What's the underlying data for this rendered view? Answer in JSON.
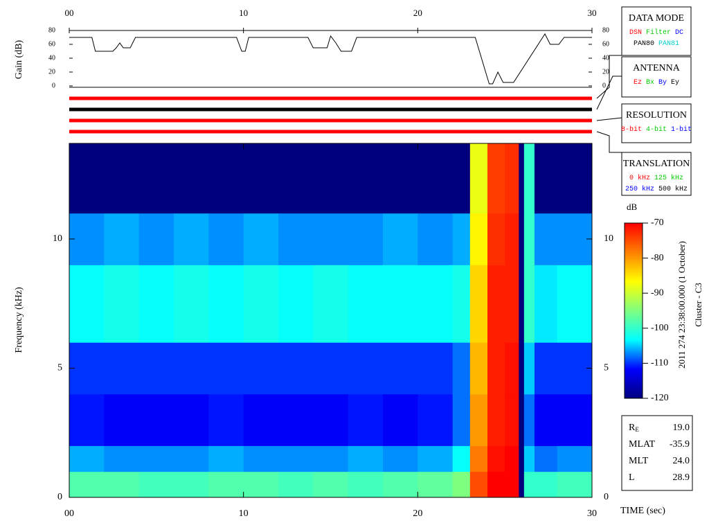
{
  "chart_data": [
    {
      "type": "line",
      "ylabel": "Gain (dB)",
      "xlim": [
        0,
        30
      ],
      "xticks": [
        {
          "value": 0,
          "label": "00"
        },
        10,
        20,
        30
      ],
      "ylim": [
        0,
        80
      ],
      "yticks": [
        0,
        20,
        40,
        60,
        80
      ],
      "color": "#000000",
      "x": [
        0,
        1.3,
        1.5,
        2.5,
        2.7,
        2.9,
        3.1,
        3.5,
        3.8,
        9.6,
        9.9,
        10.1,
        10.3,
        13.7,
        14,
        14.8,
        15,
        15.3,
        15.6,
        16.2,
        16.5,
        23.3,
        24.1,
        24.3,
        24.6,
        24.9,
        25.5,
        27.3,
        27.6,
        28.1,
        28.4,
        30
      ],
      "values": [
        70,
        70,
        50,
        50,
        55,
        62,
        55,
        55,
        70,
        70,
        50,
        50,
        70,
        70,
        55,
        55,
        72,
        62,
        50,
        50,
        70,
        70,
        3,
        3,
        20,
        5,
        5,
        75,
        60,
        60,
        70,
        70
      ]
    },
    {
      "type": "heatmap",
      "ylabel": "Frequency (kHz)",
      "xlabel": "TIME (sec)",
      "colorbar_title": "dB",
      "xlim": [
        0,
        30
      ],
      "xticks": [
        {
          "value": 0,
          "label": "00"
        },
        10,
        20,
        30
      ],
      "ylim": [
        0,
        13.7
      ],
      "yticks": [
        0,
        5,
        10
      ],
      "zlim": [
        -120,
        -70
      ],
      "zticks": [
        -120,
        -110,
        -100,
        -90,
        -80,
        -70
      ],
      "colormap": [
        "#00007f",
        "#0000ff",
        "#00ffff",
        "#7fff7f",
        "#ffff00",
        "#ff7f00",
        "#ff0000"
      ],
      "time_edges": [
        0,
        2,
        4,
        6,
        8,
        10,
        12,
        14,
        16,
        18,
        20,
        22,
        23,
        24,
        25,
        25.8,
        26.1,
        26.7,
        28,
        30
      ],
      "freq_edges": [
        0,
        1,
        2,
        4,
        6,
        9,
        11,
        13.7
      ],
      "z": [
        [
          -98,
          -106,
          -111,
          -110,
          -103,
          -107,
          -120
        ],
        [
          -98,
          -107,
          -112,
          -110,
          -102,
          -106,
          -120
        ],
        [
          -99,
          -107,
          -112,
          -110,
          -103,
          -107,
          -120
        ],
        [
          -99,
          -107,
          -112,
          -110,
          -102,
          -106,
          -120
        ],
        [
          -98,
          -106,
          -111,
          -110,
          -103,
          -107,
          -120
        ],
        [
          -98,
          -107,
          -112,
          -110,
          -102,
          -106,
          -120
        ],
        [
          -99,
          -107,
          -112,
          -110,
          -103,
          -107,
          -120
        ],
        [
          -98,
          -107,
          -112,
          -110,
          -102,
          -107,
          -120
        ],
        [
          -99,
          -106,
          -111,
          -110,
          -103,
          -107,
          -120
        ],
        [
          -98,
          -107,
          -112,
          -110,
          -103,
          -106,
          -120
        ],
        [
          -97,
          -106,
          -111,
          -110,
          -103,
          -107,
          -120
        ],
        [
          -95,
          -103,
          -108,
          -108,
          -102,
          -106,
          -120
        ],
        [
          -75,
          -78,
          -80,
          -82,
          -84,
          -86,
          -88
        ],
        [
          -70,
          -71,
          -72,
          -72,
          -72,
          -73,
          -74
        ],
        [
          -70,
          -70,
          -71,
          -71,
          -72,
          -72,
          -73
        ],
        [
          -120,
          -120,
          -120,
          -120,
          -120,
          -120,
          -120
        ],
        [
          -100,
          -105,
          -108,
          -105,
          -100,
          -100,
          -100
        ],
        [
          -100,
          -108,
          -112,
          -110,
          -104,
          -107,
          -120
        ],
        [
          -99,
          -107,
          -112,
          -110,
          -103,
          -107,
          -120
        ]
      ]
    }
  ],
  "status_bars": [
    "#ff0000",
    "#000000",
    "#ff0000",
    "#ff0000"
  ],
  "side_panels": [
    {
      "title": "DATA MODE",
      "rows": [
        [
          {
            "text": "DSN",
            "color": "#ff0000"
          },
          {
            "text": "Filter",
            "color": "#00cc00"
          },
          {
            "text": "DC",
            "color": "#0000ff"
          }
        ],
        [
          {
            "text": "PAN80",
            "color": "#000000"
          },
          {
            "text": "PAN81",
            "color": "#00cccc"
          }
        ]
      ]
    },
    {
      "title": "ANTENNA",
      "rows": [
        [
          {
            "text": "Ez",
            "color": "#ff0000"
          },
          {
            "text": "Bx",
            "color": "#00cc00"
          },
          {
            "text": "By",
            "color": "#0000ff"
          },
          {
            "text": "Ey",
            "color": "#000000"
          }
        ]
      ]
    },
    {
      "title": "RESOLUTION",
      "rows": [
        [
          {
            "text": "8-bit",
            "color": "#ff0000"
          },
          {
            "text": "4-bit",
            "color": "#00cc00"
          },
          {
            "text": "1-bit",
            "color": "#0000ff"
          }
        ]
      ]
    },
    {
      "title": "TRANSLATION",
      "rows": [
        [
          {
            "text": "0 kHz",
            "color": "#ff0000"
          },
          {
            "text": "125 kHz",
            "color": "#00cc00"
          }
        ],
        [
          {
            "text": "250 kHz",
            "color": "#0000ff"
          },
          {
            "text": "500 kHz",
            "color": "#000000"
          }
        ]
      ]
    }
  ],
  "stats": [
    {
      "label": "R",
      "sub": "E",
      "value": "19.0"
    },
    {
      "label": "MLAT",
      "value": "-35.9"
    },
    {
      "label": "MLT",
      "value": "24.0"
    },
    {
      "label": "L",
      "value": "28.9"
    }
  ],
  "timestamp": "2011 274 23:38:00.000 (1 October)",
  "spacecraft": "Cluster - C3"
}
